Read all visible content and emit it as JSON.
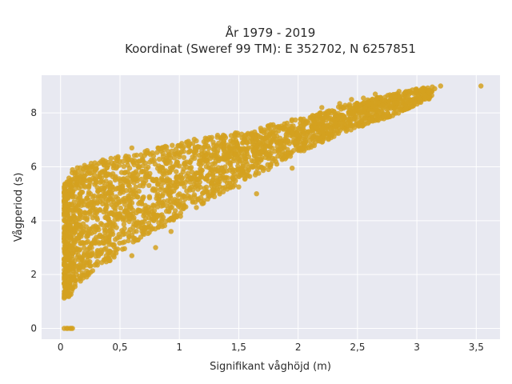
{
  "chart_data": {
    "type": "scatter",
    "title_line1": "År 1979 - 2019",
    "title_line2": "Koordinat (Sweref 99 TM): E 352702, N 6257851",
    "xlabel": "Signifikant våghöjd (m)",
    "ylabel": "Vågperiod (s)",
    "xlim": [
      -0.16,
      3.7
    ],
    "ylim": [
      -0.4,
      9.4
    ],
    "x_ticks": [
      0,
      0.5,
      1,
      1.5,
      2,
      2.5,
      3,
      3.5
    ],
    "x_tick_labels": [
      "0",
      "0,5",
      "1",
      "1,5",
      "2",
      "2,5",
      "3",
      "3,5"
    ],
    "y_ticks": [
      0,
      2,
      4,
      6,
      8
    ],
    "y_tick_labels": [
      "0",
      "2",
      "4",
      "6",
      "8"
    ],
    "grid": true,
    "marker_color": "#D4A120",
    "plot_bg": "#E8E9F1",
    "series": [
      {
        "envelope_lower": [
          [
            0.05,
            1.1
          ],
          [
            0.1,
            1.3
          ],
          [
            0.2,
            1.8
          ],
          [
            0.3,
            2.2
          ],
          [
            0.5,
            2.75
          ],
          [
            0.7,
            3.4
          ],
          [
            1.0,
            4.1
          ],
          [
            1.3,
            4.9
          ],
          [
            1.6,
            5.6
          ],
          [
            2.0,
            6.5
          ],
          [
            2.4,
            7.3
          ],
          [
            2.8,
            7.9
          ],
          [
            3.1,
            8.5
          ]
        ],
        "envelope_upper": [
          [
            0.05,
            5.4
          ],
          [
            0.1,
            5.9
          ],
          [
            0.2,
            6.1
          ],
          [
            0.4,
            6.3
          ],
          [
            0.6,
            6.5
          ],
          [
            0.8,
            6.7
          ],
          [
            1.0,
            6.9
          ],
          [
            1.2,
            7.1
          ],
          [
            1.5,
            7.3
          ],
          [
            1.8,
            7.6
          ],
          [
            2.1,
            7.9
          ],
          [
            2.4,
            8.3
          ],
          [
            2.7,
            8.6
          ],
          [
            3.0,
            8.9
          ],
          [
            3.2,
            9.0
          ]
        ],
        "outliers": [
          [
            3.54,
            9.0
          ],
          [
            3.2,
            9.0
          ],
          [
            3.15,
            8.9
          ],
          [
            3.05,
            8.8
          ],
          [
            2.95,
            8.75
          ],
          [
            2.85,
            8.8
          ],
          [
            2.65,
            8.7
          ],
          [
            2.55,
            8.55
          ],
          [
            2.45,
            8.5
          ],
          [
            2.35,
            8.35
          ],
          [
            2.2,
            8.2
          ],
          [
            0.6,
            6.7
          ],
          [
            0.72,
            6.5
          ],
          [
            0.82,
            6.7
          ],
          [
            1.75,
            5.9
          ],
          [
            1.95,
            5.95
          ],
          [
            1.65,
            5.0
          ],
          [
            1.45,
            5.8
          ],
          [
            1.5,
            5.25
          ],
          [
            2.25,
            7.3
          ],
          [
            2.05,
            6.8
          ],
          [
            0.8,
            3.0
          ],
          [
            0.93,
            3.6
          ],
          [
            0.6,
            2.7
          ],
          [
            0.45,
            2.65
          ],
          [
            0.2,
            5.3
          ],
          [
            0.25,
            5.5
          ],
          [
            0.08,
            5.3
          ]
        ],
        "zero_period_points": [
          [
            0.03,
            0
          ],
          [
            0.05,
            0
          ],
          [
            0.06,
            0
          ],
          [
            0.08,
            0
          ],
          [
            0.09,
            0
          ],
          [
            0.1,
            0
          ]
        ]
      }
    ]
  }
}
